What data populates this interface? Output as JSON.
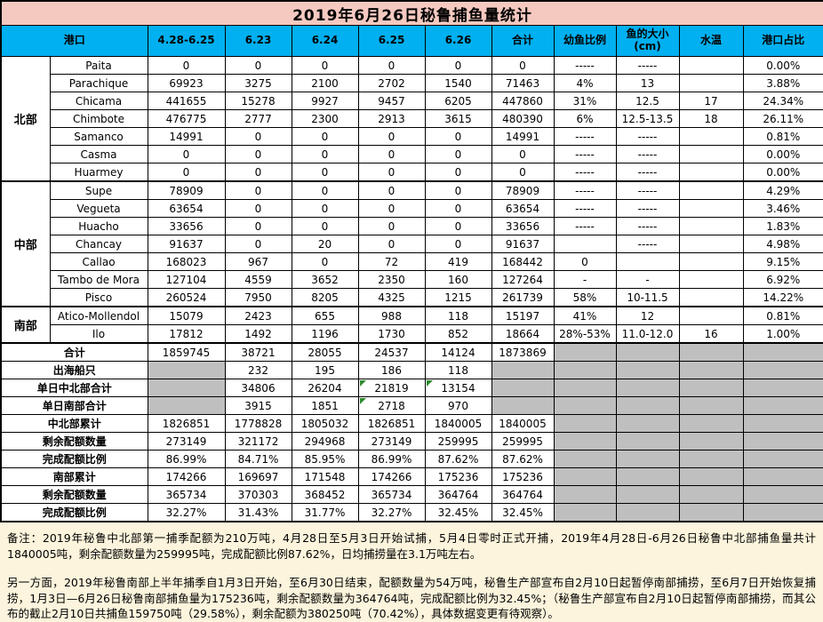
{
  "title": "2019年6月26日秘鲁捕鱼量统计",
  "colors": {
    "title_bg": "#F5C9C0",
    "header_bg": "#00B0F0",
    "gray_cell": "#BFBFBF",
    "page_bg": "#FCF4DC",
    "marker_green": "#2E8B2E"
  },
  "header": {
    "port": "港口",
    "cols": [
      "4.28-6.25",
      "6.23",
      "6.24",
      "6.25",
      "6.26",
      "合计",
      "幼鱼比例",
      "鱼的大小\n(cm)",
      "水温",
      "港口占比"
    ]
  },
  "groups": [
    {
      "name": "北部",
      "rows": [
        {
          "port": "Paita",
          "cells": [
            "0",
            "0",
            "0",
            "0",
            "0",
            "0",
            "-----",
            "-----",
            "",
            "0.00%"
          ]
        },
        {
          "port": "Parachique",
          "cells": [
            "69923",
            "3275",
            "2100",
            "2702",
            "1540",
            "71463",
            "4%",
            "13",
            "",
            "3.88%"
          ]
        },
        {
          "port": "Chicama",
          "cells": [
            "441655",
            "15278",
            "9927",
            "9457",
            "6205",
            "447860",
            "31%",
            "12.5",
            "17",
            "24.34%"
          ]
        },
        {
          "port": "Chimbote",
          "cells": [
            "476775",
            "2777",
            "2300",
            "2913",
            "3615",
            "480390",
            "6%",
            "12.5-13.5",
            "18",
            "26.11%"
          ]
        },
        {
          "port": "Samanco",
          "cells": [
            "14991",
            "0",
            "0",
            "0",
            "0",
            "14991",
            "-----",
            "-----",
            "",
            "0.81%"
          ]
        },
        {
          "port": "Casma",
          "cells": [
            "0",
            "0",
            "0",
            "0",
            "0",
            "0",
            "-----",
            "-----",
            "",
            "0.00%"
          ]
        },
        {
          "port": "Huarmey",
          "cells": [
            "0",
            "0",
            "0",
            "0",
            "0",
            "0",
            "-----",
            "-----",
            "",
            "0.00%"
          ]
        }
      ]
    },
    {
      "name": "中部",
      "rows": [
        {
          "port": "Supe",
          "cells": [
            "78909",
            "0",
            "0",
            "0",
            "0",
            "78909",
            "-----",
            "-----",
            "",
            "4.29%"
          ]
        },
        {
          "port": "Vegueta",
          "cells": [
            "63654",
            "0",
            "0",
            "0",
            "0",
            "63654",
            "-----",
            "-----",
            "",
            "3.46%"
          ]
        },
        {
          "port": "Huacho",
          "cells": [
            "33656",
            "0",
            "0",
            "0",
            "0",
            "33656",
            "-----",
            "-----",
            "",
            "1.83%"
          ]
        },
        {
          "port": "Chancay",
          "cells": [
            "91637",
            "0",
            "20",
            "0",
            "0",
            "91637",
            "",
            "-----",
            "",
            "4.98%"
          ]
        },
        {
          "port": "Callao",
          "cells": [
            "168023",
            "967",
            "0",
            "72",
            "419",
            "168442",
            "0",
            "",
            "",
            "9.15%"
          ]
        },
        {
          "port": "Tambo de Mora",
          "cells": [
            "127104",
            "4559",
            "3652",
            "2350",
            "160",
            "127264",
            "-",
            "-",
            "",
            "6.92%"
          ]
        },
        {
          "port": "Pisco",
          "cells": [
            "260524",
            "7950",
            "8205",
            "4325",
            "1215",
            "261739",
            "58%",
            "10-11.5",
            "",
            "14.22%"
          ]
        }
      ]
    },
    {
      "name": "南部",
      "rows": [
        {
          "port": "Atico-Mollendol",
          "cells": [
            "15079",
            "2423",
            "655",
            "988",
            "118",
            "15197",
            "41%",
            "12",
            "",
            "0.81%"
          ]
        },
        {
          "port": "Ilo",
          "cells": [
            "17812",
            "1492",
            "1196",
            "1730",
            "852",
            "18664",
            "28%-53%",
            "11.0-12.0",
            "16",
            "1.00%"
          ]
        }
      ]
    }
  ],
  "summary": [
    {
      "label": "合计",
      "cells": [
        "1859745",
        "38721",
        "28055",
        "24537",
        "14124",
        "1873869"
      ]
    },
    {
      "label": "出海船只",
      "cells": [
        "",
        "232",
        "195",
        "186",
        "118",
        ""
      ]
    },
    {
      "label": "单日中北部合计",
      "cells": [
        "",
        "34806",
        "26204",
        "21819",
        "13154",
        ""
      ],
      "markers": [
        3,
        4
      ]
    },
    {
      "label": "单日南部合计",
      "cells": [
        "",
        "3915",
        "1851",
        "2718",
        "970",
        ""
      ],
      "markers": [
        3
      ]
    },
    {
      "label": "中北部累计",
      "cells": [
        "1826851",
        "1778828",
        "1805032",
        "1826851",
        "1840005",
        "1840005"
      ]
    },
    {
      "label": "剩余配额数量",
      "cells": [
        "273149",
        "321172",
        "294968",
        "273149",
        "259995",
        "259995"
      ]
    },
    {
      "label": "完成配额比例",
      "cells": [
        "86.99%",
        "84.71%",
        "85.95%",
        "86.99%",
        "87.62%",
        "87.62%"
      ]
    },
    {
      "label": "南部累计",
      "cells": [
        "174266",
        "169697",
        "171548",
        "174266",
        "175236",
        "175236"
      ]
    },
    {
      "label": "剩余配额数量",
      "cells": [
        "365734",
        "370303",
        "368452",
        "365734",
        "364764",
        "364764"
      ]
    },
    {
      "label": "完成配额比例",
      "cells": [
        "32.27%",
        "31.43%",
        "31.77%",
        "32.27%",
        "32.45%",
        "32.45%"
      ]
    }
  ],
  "notes": [
    "备注：2019年秘鲁中北部第一捕季配额为210万吨，4月28日至5月3日开始试捕，5月4日零时正式开捕，2019年4月28日-6月26日秘鲁中北部捕鱼量共计1840005吨，剩余配额数量为259995吨，完成配额比例87.62%，日均捕捞量在3.1万吨左右。",
    "另一方面，2019年秘鲁南部上半年捕季自1月3日开始，至6月30日结束，配额数量为54万吨，秘鲁生产部宣布自2月10日起暂停南部捕捞，至6月7日开始恢复捕捞，1月3日—6月26日秘鲁南部捕鱼量为175236吨，剩余配额数量为364764吨，完成配额比例为32.45%；（秘鲁生产部宣布自2月10日起暂停南部捕捞，而其公布的截止2月10日共捕鱼159750吨（29.58%），剩余配额为380250吨（70.42%），具体数据变更有待观察）。"
  ]
}
